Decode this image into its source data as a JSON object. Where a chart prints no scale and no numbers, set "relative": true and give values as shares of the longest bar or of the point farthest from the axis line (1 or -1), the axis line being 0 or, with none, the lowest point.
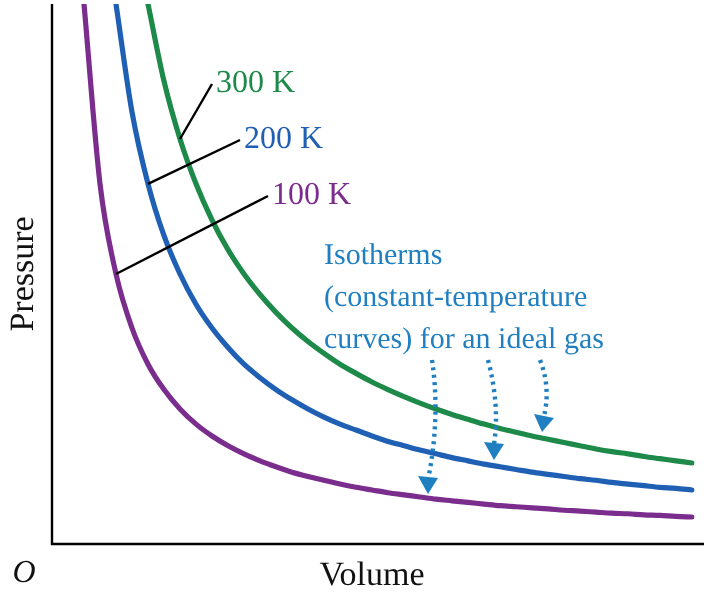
{
  "chart_data": {
    "type": "line",
    "relative": true,
    "xlabel": "Volume",
    "ylabel": "Pressure",
    "legend": false,
    "marker": "none",
    "line_style": "solid",
    "annotations": [
      "Isotherms (constant-temperature curves) for an ideal gas",
      "O"
    ],
    "categories": [
      null,
      null,
      null,
      null,
      null,
      null,
      null,
      null,
      null,
      null,
      null,
      null,
      null,
      null,
      null,
      null,
      null,
      null,
      null,
      null,
      null,
      null,
      null,
      null,
      null,
      null,
      null,
      null,
      null,
      null,
      null,
      null,
      null,
      null,
      null,
      null,
      null,
      null,
      null,
      null,
      null
    ],
    "series": [
      {
        "name": "300 K",
        "color": "#1e8a4a",
        "values": [
          null,
          null,
          null,
          null,
          null,
          null,
          1,
          0.857,
          0.75,
          0.667,
          0.6,
          0.545,
          0.5,
          0.462,
          0.429,
          0.4,
          0.375,
          0.353,
          0.333,
          0.316,
          0.3,
          0.286,
          0.273,
          0.261,
          0.25,
          0.24,
          0.231,
          0.222,
          0.214,
          0.207,
          0.2,
          0.194,
          0.188,
          0.182,
          0.176,
          0.171,
          0.167,
          0.162,
          0.158,
          0.154,
          0.15
        ]
      },
      {
        "name": "200 K",
        "color": "#1f5fb4",
        "values": [
          null,
          null,
          null,
          null,
          1,
          0.8,
          0.667,
          0.571,
          0.5,
          0.444,
          0.4,
          0.364,
          0.333,
          0.308,
          0.286,
          0.267,
          0.25,
          0.235,
          0.222,
          0.211,
          0.2,
          0.19,
          0.182,
          0.174,
          0.167,
          0.16,
          0.154,
          0.148,
          0.143,
          0.138,
          0.133,
          0.129,
          0.125,
          0.121,
          0.118,
          0.114,
          0.111,
          0.108,
          0.105,
          0.103,
          0.1
        ]
      },
      {
        "name": "100 K",
        "color": "#7b2d8e",
        "values": [
          null,
          null,
          1,
          0.667,
          0.5,
          0.4,
          0.333,
          0.286,
          0.25,
          0.222,
          0.2,
          0.182,
          0.167,
          0.154,
          0.143,
          0.133,
          0.125,
          0.118,
          0.111,
          0.105,
          0.1,
          0.095,
          0.091,
          0.087,
          0.083,
          0.08,
          0.077,
          0.074,
          0.071,
          0.069,
          0.067,
          0.065,
          0.0625,
          0.061,
          0.059,
          0.057,
          0.056,
          0.054,
          0.053,
          0.051,
          0.05
        ]
      }
    ]
  }
}
